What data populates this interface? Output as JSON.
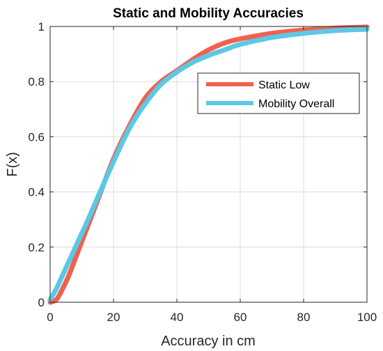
{
  "chart_data": {
    "type": "line",
    "title": "Static and Mobility Accuracies",
    "xlabel": "Accuracy in cm",
    "ylabel": "F(x)",
    "xlim": [
      0,
      100
    ],
    "ylim": [
      0,
      1
    ],
    "xticks": [
      0,
      20,
      40,
      60,
      80,
      100
    ],
    "yticks": [
      0,
      0.2,
      0.4,
      0.6,
      0.8,
      1
    ],
    "xtick_labels": [
      "0",
      "20",
      "40",
      "60",
      "80",
      "100"
    ],
    "ytick_labels": [
      "0",
      "0.2",
      "0.4",
      "0.6",
      "0.8",
      "1"
    ],
    "grid": true,
    "legend_position": "top-right",
    "series": [
      {
        "name": "Static Low",
        "color": "#f0614e",
        "x": [
          0,
          2,
          4,
          6,
          8,
          10,
          12,
          15,
          20,
          25,
          30,
          35,
          40,
          45,
          50,
          55,
          60,
          70,
          80,
          90,
          100
        ],
        "y": [
          0,
          0.01,
          0.05,
          0.1,
          0.16,
          0.22,
          0.28,
          0.37,
          0.52,
          0.64,
          0.74,
          0.8,
          0.84,
          0.88,
          0.915,
          0.94,
          0.955,
          0.975,
          0.987,
          0.994,
          0.998
        ]
      },
      {
        "name": "Mobility Overall",
        "color": "#5bc8e6",
        "x": [
          0,
          2,
          4,
          6,
          8,
          10,
          12,
          15,
          20,
          25,
          30,
          35,
          40,
          45,
          50,
          55,
          60,
          70,
          80,
          90,
          100
        ],
        "y": [
          0.01,
          0.05,
          0.1,
          0.15,
          0.2,
          0.25,
          0.3,
          0.38,
          0.51,
          0.63,
          0.72,
          0.79,
          0.835,
          0.87,
          0.895,
          0.915,
          0.935,
          0.96,
          0.975,
          0.985,
          0.99
        ]
      }
    ]
  }
}
